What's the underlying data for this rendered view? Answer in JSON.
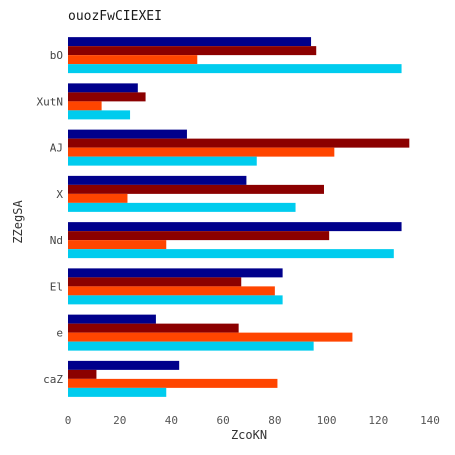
{
  "chart_data": {
    "type": "bar",
    "orientation": "horizontal",
    "title": "ouozFwCIEXEI",
    "xlabel": "ZcoKN",
    "ylabel": "ZZegSA",
    "categories": [
      "bO",
      "XutN",
      "AJ",
      "X",
      "Nd",
      "El",
      "e",
      "caZ"
    ],
    "series": [
      {
        "color": "#00008b",
        "values": [
          94,
          27,
          46,
          69,
          129,
          83,
          34,
          43
        ]
      },
      {
        "color": "#8b0000",
        "values": [
          96,
          30,
          132,
          99,
          101,
          67,
          66,
          11
        ]
      },
      {
        "color": "#ff4500",
        "values": [
          50,
          13,
          103,
          23,
          38,
          80,
          110,
          81
        ]
      },
      {
        "color": "#00ccee",
        "values": [
          129,
          24,
          73,
          88,
          126,
          83,
          95,
          38
        ]
      }
    ],
    "xlim": [
      0,
      140
    ],
    "xticks": [
      0,
      20,
      40,
      60,
      80,
      100,
      120,
      140
    ],
    "grid": false,
    "legend": "none"
  }
}
